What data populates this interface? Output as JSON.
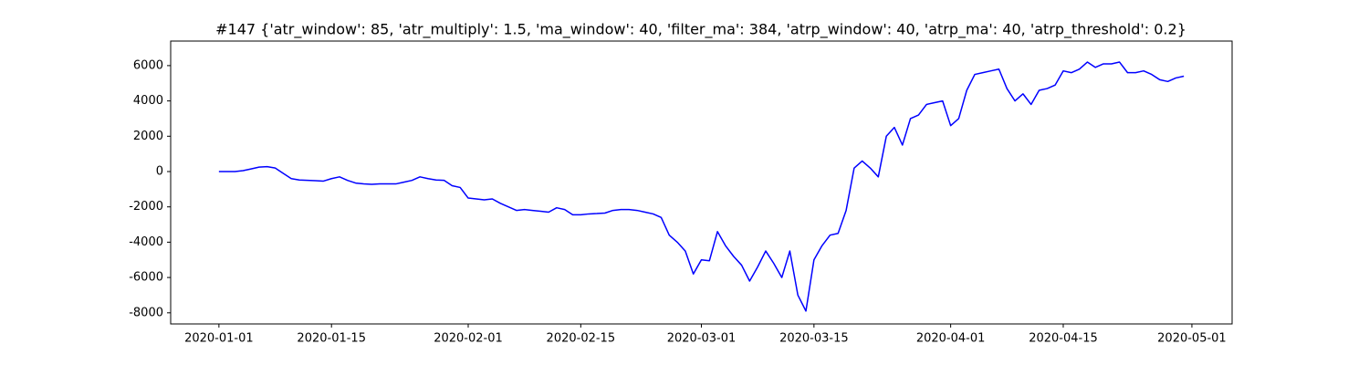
{
  "chart_data": {
    "type": "line",
    "title": "#147 {'atr_window': 85, 'atr_multiply': 1.5, 'ma_window': 40, 'filter_ma': 384, 'atrp_window': 40, 'atrp_ma': 40, 'atrp_threshold': 0.2}",
    "x": [
      "2020-01-01",
      "2020-01-02",
      "2020-01-03",
      "2020-01-04",
      "2020-01-05",
      "2020-01-06",
      "2020-01-07",
      "2020-01-08",
      "2020-01-09",
      "2020-01-10",
      "2020-01-11",
      "2020-01-12",
      "2020-01-13",
      "2020-01-14",
      "2020-01-15",
      "2020-01-16",
      "2020-01-17",
      "2020-01-18",
      "2020-01-19",
      "2020-01-20",
      "2020-01-21",
      "2020-01-22",
      "2020-01-23",
      "2020-01-24",
      "2020-01-25",
      "2020-01-26",
      "2020-01-27",
      "2020-01-28",
      "2020-01-29",
      "2020-01-30",
      "2020-01-31",
      "2020-02-01",
      "2020-02-02",
      "2020-02-03",
      "2020-02-04",
      "2020-02-05",
      "2020-02-06",
      "2020-02-07",
      "2020-02-08",
      "2020-02-09",
      "2020-02-10",
      "2020-02-11",
      "2020-02-12",
      "2020-02-13",
      "2020-02-14",
      "2020-02-15",
      "2020-02-16",
      "2020-02-17",
      "2020-02-18",
      "2020-02-19",
      "2020-02-20",
      "2020-02-21",
      "2020-02-22",
      "2020-02-23",
      "2020-02-24",
      "2020-02-25",
      "2020-02-26",
      "2020-02-27",
      "2020-02-28",
      "2020-02-29",
      "2020-03-01",
      "2020-03-02",
      "2020-03-03",
      "2020-03-04",
      "2020-03-05",
      "2020-03-06",
      "2020-03-07",
      "2020-03-08",
      "2020-03-09",
      "2020-03-10",
      "2020-03-11",
      "2020-03-12",
      "2020-03-13",
      "2020-03-14",
      "2020-03-15",
      "2020-03-16",
      "2020-03-17",
      "2020-03-18",
      "2020-03-19",
      "2020-03-20",
      "2020-03-21",
      "2020-03-22",
      "2020-03-23",
      "2020-03-24",
      "2020-03-25",
      "2020-03-26",
      "2020-03-27",
      "2020-03-28",
      "2020-03-29",
      "2020-03-30",
      "2020-03-31",
      "2020-04-01",
      "2020-04-02",
      "2020-04-03",
      "2020-04-04",
      "2020-04-05",
      "2020-04-06",
      "2020-04-07",
      "2020-04-08",
      "2020-04-09",
      "2020-04-10",
      "2020-04-11",
      "2020-04-12",
      "2020-04-13",
      "2020-04-14",
      "2020-04-15",
      "2020-04-16",
      "2020-04-17",
      "2020-04-18",
      "2020-04-19",
      "2020-04-20",
      "2020-04-21",
      "2020-04-22",
      "2020-04-23",
      "2020-04-24",
      "2020-04-25",
      "2020-04-26",
      "2020-04-27",
      "2020-04-28",
      "2020-04-29",
      "2020-04-30"
    ],
    "series": [
      {
        "color": "#0000ff",
        "values": [
          0,
          0,
          0,
          50,
          150,
          250,
          280,
          200,
          -100,
          -400,
          -480,
          -500,
          -520,
          -540,
          -400,
          -300,
          -500,
          -650,
          -700,
          -720,
          -700,
          -700,
          -700,
          -600,
          -500,
          -300,
          -400,
          -480,
          -500,
          -800,
          -900,
          -1500,
          -1550,
          -1600,
          -1550,
          -1800,
          -2000,
          -2200,
          -2150,
          -2200,
          -2250,
          -2300,
          -2050,
          -2150,
          -2450,
          -2450,
          -2400,
          -2380,
          -2350,
          -2200,
          -2150,
          -2150,
          -2200,
          -2300,
          -2400,
          -2600,
          -3600,
          -4000,
          -4500,
          -5800,
          -5000,
          -5050,
          -3400,
          -4200,
          -4800,
          -5300,
          -6200,
          -5400,
          -4500,
          -5200,
          -6000,
          -4500,
          -7000,
          -7900,
          -5000,
          -4200,
          -3600,
          -3500,
          -2200,
          200,
          600,
          200,
          -300,
          2000,
          2500,
          1500,
          3000,
          3200,
          3800,
          3900,
          4000,
          2600,
          3000,
          4600,
          5500,
          5600,
          5700,
          5800,
          4700,
          4000,
          4400,
          3800,
          4600,
          4700,
          4900,
          5700,
          5600,
          5800,
          6200,
          5900,
          6100,
          6100,
          6200,
          5600,
          5600,
          5700,
          5500,
          5200,
          5100,
          5300,
          5400
        ]
      }
    ],
    "xlim": [
      "2019-12-26",
      "2020-05-06"
    ],
    "ylim": [
      -8630,
      7390
    ],
    "xticks": [
      "2020-01-01",
      "2020-01-15",
      "2020-02-01",
      "2020-02-15",
      "2020-03-01",
      "2020-03-15",
      "2020-04-01",
      "2020-04-15",
      "2020-05-01"
    ],
    "yticks": [
      -8000,
      -6000,
      -4000,
      -2000,
      0,
      2000,
      4000,
      6000
    ],
    "grid": false
  }
}
